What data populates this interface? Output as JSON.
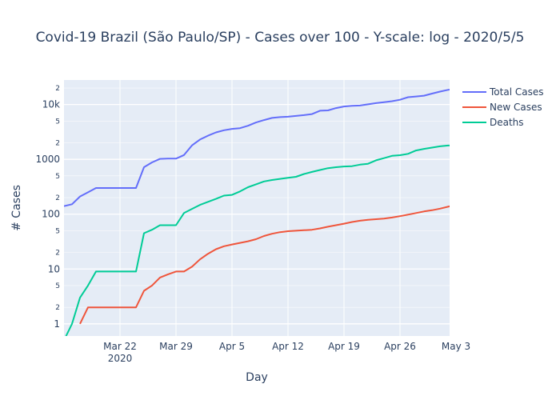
{
  "chart_data": {
    "type": "line",
    "title": "Covid-19 Brazil (São Paulo/SP) - Cases over 100 - Y-scale: log - 2020/5/5",
    "xlabel": "Day",
    "ylabel": "# Cases",
    "yscale": "log",
    "ylim": [
      0.6,
      28000
    ],
    "xlim": [
      "2020-03-15",
      "2020-05-04"
    ],
    "grid": true,
    "legend_position": "top-right",
    "x_ticks": [
      {
        "date": "2020-03-22",
        "label": "Mar 22",
        "sublabel": "2020"
      },
      {
        "date": "2020-03-29",
        "label": "Mar 29"
      },
      {
        "date": "2020-04-05",
        "label": "Apr 5"
      },
      {
        "date": "2020-04-12",
        "label": "Apr 12"
      },
      {
        "date": "2020-04-19",
        "label": "Apr 19"
      },
      {
        "date": "2020-04-26",
        "label": "Apr 26"
      },
      {
        "date": "2020-05-03",
        "label": "May 3"
      }
    ],
    "y_major_ticks": [
      {
        "value": 1,
        "label": "1"
      },
      {
        "value": 10,
        "label": "10"
      },
      {
        "value": 100,
        "label": "100"
      },
      {
        "value": 1000,
        "label": "1000"
      },
      {
        "value": 10000,
        "label": "10k"
      }
    ],
    "y_minor_ticks": [
      {
        "value": 2,
        "label": "2"
      },
      {
        "value": 5,
        "label": "5"
      },
      {
        "value": 20,
        "label": "2"
      },
      {
        "value": 50,
        "label": "5"
      },
      {
        "value": 200,
        "label": "2"
      },
      {
        "value": 500,
        "label": "5"
      },
      {
        "value": 2000,
        "label": "2"
      },
      {
        "value": 5000,
        "label": "5"
      },
      {
        "value": 20000,
        "label": "2"
      }
    ],
    "series": [
      {
        "name": "Total Cases",
        "color": "#636efa",
        "points": [
          [
            "2020-03-15",
            140
          ],
          [
            "2020-03-16",
            152
          ],
          [
            "2020-03-17",
            210
          ],
          [
            "2020-03-18",
            250
          ],
          [
            "2020-03-19",
            300
          ],
          [
            "2020-03-20",
            300
          ],
          [
            "2020-03-21",
            300
          ],
          [
            "2020-03-22",
            300
          ],
          [
            "2020-03-23",
            300
          ],
          [
            "2020-03-24",
            300
          ],
          [
            "2020-03-25",
            720
          ],
          [
            "2020-03-26",
            880
          ],
          [
            "2020-03-27",
            1020
          ],
          [
            "2020-03-28",
            1030
          ],
          [
            "2020-03-29",
            1030
          ],
          [
            "2020-03-30",
            1200
          ],
          [
            "2020-03-31",
            1800
          ],
          [
            "2020-04-01",
            2300
          ],
          [
            "2020-04-02",
            2700
          ],
          [
            "2020-04-03",
            3100
          ],
          [
            "2020-04-04",
            3400
          ],
          [
            "2020-04-05",
            3600
          ],
          [
            "2020-04-06",
            3700
          ],
          [
            "2020-04-07",
            4100
          ],
          [
            "2020-04-08",
            4700
          ],
          [
            "2020-04-09",
            5200
          ],
          [
            "2020-04-10",
            5700
          ],
          [
            "2020-04-11",
            5900
          ],
          [
            "2020-04-12",
            6000
          ],
          [
            "2020-04-13",
            6200
          ],
          [
            "2020-04-14",
            6400
          ],
          [
            "2020-04-15",
            6700
          ],
          [
            "2020-04-16",
            7700
          ],
          [
            "2020-04-17",
            7800
          ],
          [
            "2020-04-18",
            8600
          ],
          [
            "2020-04-19",
            9200
          ],
          [
            "2020-04-20",
            9500
          ],
          [
            "2020-04-21",
            9600
          ],
          [
            "2020-04-22",
            10100
          ],
          [
            "2020-04-23",
            10600
          ],
          [
            "2020-04-24",
            11000
          ],
          [
            "2020-04-25",
            11500
          ],
          [
            "2020-04-26",
            12200
          ],
          [
            "2020-04-27",
            13600
          ],
          [
            "2020-04-28",
            14000
          ],
          [
            "2020-04-29",
            14500
          ],
          [
            "2020-04-30",
            15800
          ],
          [
            "2020-05-01",
            17200
          ],
          [
            "2020-05-02",
            18500
          ],
          [
            "2020-05-03",
            19600
          ],
          [
            "2020-05-04",
            19800
          ],
          [
            "2020-05-05",
            20200
          ]
        ]
      },
      {
        "name": "New Cases",
        "color": "#ef553b",
        "points": [
          [
            "2020-03-17",
            1
          ],
          [
            "2020-03-18",
            2
          ],
          [
            "2020-03-19",
            2
          ],
          [
            "2020-03-20",
            2
          ],
          [
            "2020-03-21",
            2
          ],
          [
            "2020-03-22",
            2
          ],
          [
            "2020-03-23",
            2
          ],
          [
            "2020-03-24",
            2
          ],
          [
            "2020-03-25",
            4
          ],
          [
            "2020-03-26",
            5
          ],
          [
            "2020-03-27",
            7
          ],
          [
            "2020-03-28",
            8
          ],
          [
            "2020-03-29",
            9
          ],
          [
            "2020-03-30",
            9
          ],
          [
            "2020-03-31",
            11
          ],
          [
            "2020-04-01",
            15
          ],
          [
            "2020-04-02",
            19
          ],
          [
            "2020-04-03",
            23
          ],
          [
            "2020-04-04",
            26
          ],
          [
            "2020-04-05",
            28
          ],
          [
            "2020-04-06",
            30
          ],
          [
            "2020-04-07",
            32
          ],
          [
            "2020-04-08",
            35
          ],
          [
            "2020-04-09",
            40
          ],
          [
            "2020-04-10",
            44
          ],
          [
            "2020-04-11",
            47
          ],
          [
            "2020-04-12",
            49
          ],
          [
            "2020-04-13",
            50
          ],
          [
            "2020-04-14",
            51
          ],
          [
            "2020-04-15",
            52
          ],
          [
            "2020-04-16",
            55
          ],
          [
            "2020-04-17",
            59
          ],
          [
            "2020-04-18",
            63
          ],
          [
            "2020-04-19",
            67
          ],
          [
            "2020-04-20",
            72
          ],
          [
            "2020-04-21",
            76
          ],
          [
            "2020-04-22",
            79
          ],
          [
            "2020-04-23",
            81
          ],
          [
            "2020-04-24",
            83
          ],
          [
            "2020-04-25",
            87
          ],
          [
            "2020-04-26",
            92
          ],
          [
            "2020-04-27",
            98
          ],
          [
            "2020-04-28",
            105
          ],
          [
            "2020-04-29",
            112
          ],
          [
            "2020-04-30",
            118
          ],
          [
            "2020-05-01",
            126
          ],
          [
            "2020-05-02",
            137
          ],
          [
            "2020-05-03",
            148
          ],
          [
            "2020-05-04",
            155
          ],
          [
            "2020-05-05",
            160
          ],
          [
            "2020-05-06",
            165
          ]
        ]
      },
      {
        "name": "Deaths",
        "color": "#00cc96",
        "points": [
          [
            "2020-03-15",
            0.5
          ],
          [
            "2020-03-16",
            1
          ],
          [
            "2020-03-17",
            3
          ],
          [
            "2020-03-18",
            5
          ],
          [
            "2020-03-19",
            9
          ],
          [
            "2020-03-20",
            9
          ],
          [
            "2020-03-21",
            9
          ],
          [
            "2020-03-22",
            9
          ],
          [
            "2020-03-23",
            9
          ],
          [
            "2020-03-24",
            9
          ],
          [
            "2020-03-25",
            45
          ],
          [
            "2020-03-26",
            52
          ],
          [
            "2020-03-27",
            63
          ],
          [
            "2020-03-28",
            63
          ],
          [
            "2020-03-29",
            63
          ],
          [
            "2020-03-30",
            105
          ],
          [
            "2020-03-31",
            125
          ],
          [
            "2020-04-01",
            148
          ],
          [
            "2020-04-02",
            168
          ],
          [
            "2020-04-03",
            190
          ],
          [
            "2020-04-04",
            218
          ],
          [
            "2020-04-05",
            225
          ],
          [
            "2020-04-06",
            260
          ],
          [
            "2020-04-07",
            310
          ],
          [
            "2020-04-08",
            350
          ],
          [
            "2020-04-09",
            395
          ],
          [
            "2020-04-10",
            420
          ],
          [
            "2020-04-11",
            440
          ],
          [
            "2020-04-12",
            460
          ],
          [
            "2020-04-13",
            480
          ],
          [
            "2020-04-14",
            540
          ],
          [
            "2020-04-15",
            590
          ],
          [
            "2020-04-16",
            640
          ],
          [
            "2020-04-17",
            690
          ],
          [
            "2020-04-18",
            720
          ],
          [
            "2020-04-19",
            740
          ],
          [
            "2020-04-20",
            750
          ],
          [
            "2020-04-21",
            800
          ],
          [
            "2020-04-22",
            830
          ],
          [
            "2020-04-23",
            960
          ],
          [
            "2020-04-24",
            1050
          ],
          [
            "2020-04-25",
            1160
          ],
          [
            "2020-04-26",
            1190
          ],
          [
            "2020-04-27",
            1260
          ],
          [
            "2020-04-28",
            1450
          ],
          [
            "2020-04-29",
            1550
          ],
          [
            "2020-04-30",
            1640
          ],
          [
            "2020-05-01",
            1730
          ],
          [
            "2020-05-02",
            1790
          ],
          [
            "2020-05-03",
            1800
          ],
          [
            "2020-05-04",
            1810
          ],
          [
            "2020-05-05",
            1820
          ]
        ]
      }
    ]
  }
}
